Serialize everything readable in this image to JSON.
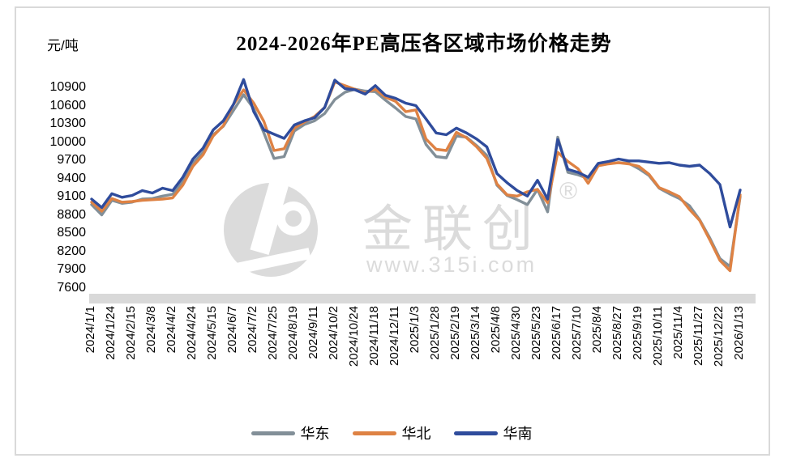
{
  "chart": {
    "title": "2024-2026年PE高压各区域市场价格走势",
    "unit_label": "元/吨",
    "watermark": {
      "brand": "金联创",
      "reg_mark": "®",
      "url": "www.315i.com",
      "color": "#DBDBDB"
    },
    "frame_border_color": "#D9D9D9",
    "axis_strip_color": "#D9D9D9"
  },
  "chart_data": {
    "type": "line",
    "title": "2024-2026年PE高压各区域市场价格走势",
    "xlabel": "",
    "ylabel": "元/吨",
    "ylim": [
      7600,
      10900
    ],
    "ytick_step": 300,
    "yticks": [
      10900,
      10600,
      10300,
      10000,
      9700,
      9400,
      9100,
      8800,
      8500,
      8200,
      7900,
      7600
    ],
    "grid": false,
    "legend_position": "bottom",
    "x_labels": [
      "2024/1/1",
      "2024/1/24",
      "2024/2/15",
      "2024/3/8",
      "2024/4/2",
      "2024/4/24",
      "2024/5/15",
      "2024/6/7",
      "2024/7/2",
      "2024/7/25",
      "2024/8/19",
      "2024/9/11",
      "2024/10/2",
      "2024/10/24",
      "2024/11/18",
      "2024/12/11",
      "2025/1/3",
      "2025/1/28",
      "2025/2/19",
      "2025/3/14",
      "2025/4/8",
      "2025/4/30",
      "2025/5/23",
      "2025/6/17",
      "2025/7/10",
      "2025/8/4",
      "2025/8/27",
      "2025/9/19",
      "2025/10/11",
      "2025/11/4",
      "2025/11/27",
      "2025/12/22",
      "2026/1/13"
    ],
    "samples_per_label_interval": 2,
    "series": [
      {
        "name": "华东",
        "color": "#828F98",
        "values": [
          8970,
          8800,
          9040,
          8990,
          9010,
          9060,
          9070,
          9110,
          9140,
          9350,
          9650,
          9830,
          10120,
          10260,
          10520,
          10780,
          10550,
          10150,
          9730,
          9760,
          10180,
          10290,
          10350,
          10470,
          10700,
          10820,
          10870,
          10840,
          10830,
          10690,
          10560,
          10420,
          10380,
          9960,
          9760,
          9740,
          10100,
          10080,
          9940,
          9780,
          9290,
          9120,
          9050,
          8970,
          9220,
          8850,
          10080,
          9500,
          9460,
          9400,
          9620,
          9650,
          9660,
          9650,
          9560,
          9450,
          9240,
          9150,
          9070,
          8950,
          8720,
          8420,
          8080,
          7950,
          9100
        ]
      },
      {
        "name": "华北",
        "color": "#DE8244",
        "values": [
          9010,
          8860,
          9070,
          9010,
          9020,
          9040,
          9050,
          9060,
          9080,
          9290,
          9600,
          9790,
          10100,
          10270,
          10620,
          10860,
          10640,
          10340,
          9860,
          9890,
          10230,
          10330,
          10420,
          10570,
          10990,
          10930,
          10870,
          10810,
          10870,
          10740,
          10670,
          10500,
          10530,
          10050,
          9880,
          9860,
          10160,
          10070,
          9920,
          9730,
          9310,
          9130,
          9110,
          9180,
          9220,
          9000,
          9830,
          9680,
          9560,
          9320,
          9610,
          9640,
          9660,
          9640,
          9600,
          9470,
          9250,
          9180,
          9100,
          8890,
          8710,
          8390,
          8050,
          7880,
          9130
        ]
      },
      {
        "name": "华南",
        "color": "#2F4C9C",
        "values": [
          9060,
          8920,
          9150,
          9090,
          9120,
          9200,
          9160,
          9240,
          9200,
          9420,
          9720,
          9900,
          10200,
          10350,
          10620,
          11030,
          10500,
          10200,
          10130,
          10060,
          10280,
          10350,
          10400,
          10570,
          11020,
          10880,
          10860,
          10790,
          10930,
          10770,
          10720,
          10640,
          10600,
          10380,
          10150,
          10120,
          10230,
          10150,
          10050,
          9920,
          9480,
          9330,
          9200,
          9110,
          9370,
          9060,
          10040,
          9550,
          9500,
          9420,
          9650,
          9680,
          9720,
          9690,
          9690,
          9670,
          9650,
          9660,
          9620,
          9600,
          9620,
          9480,
          9300,
          8600,
          9210
        ]
      }
    ]
  }
}
